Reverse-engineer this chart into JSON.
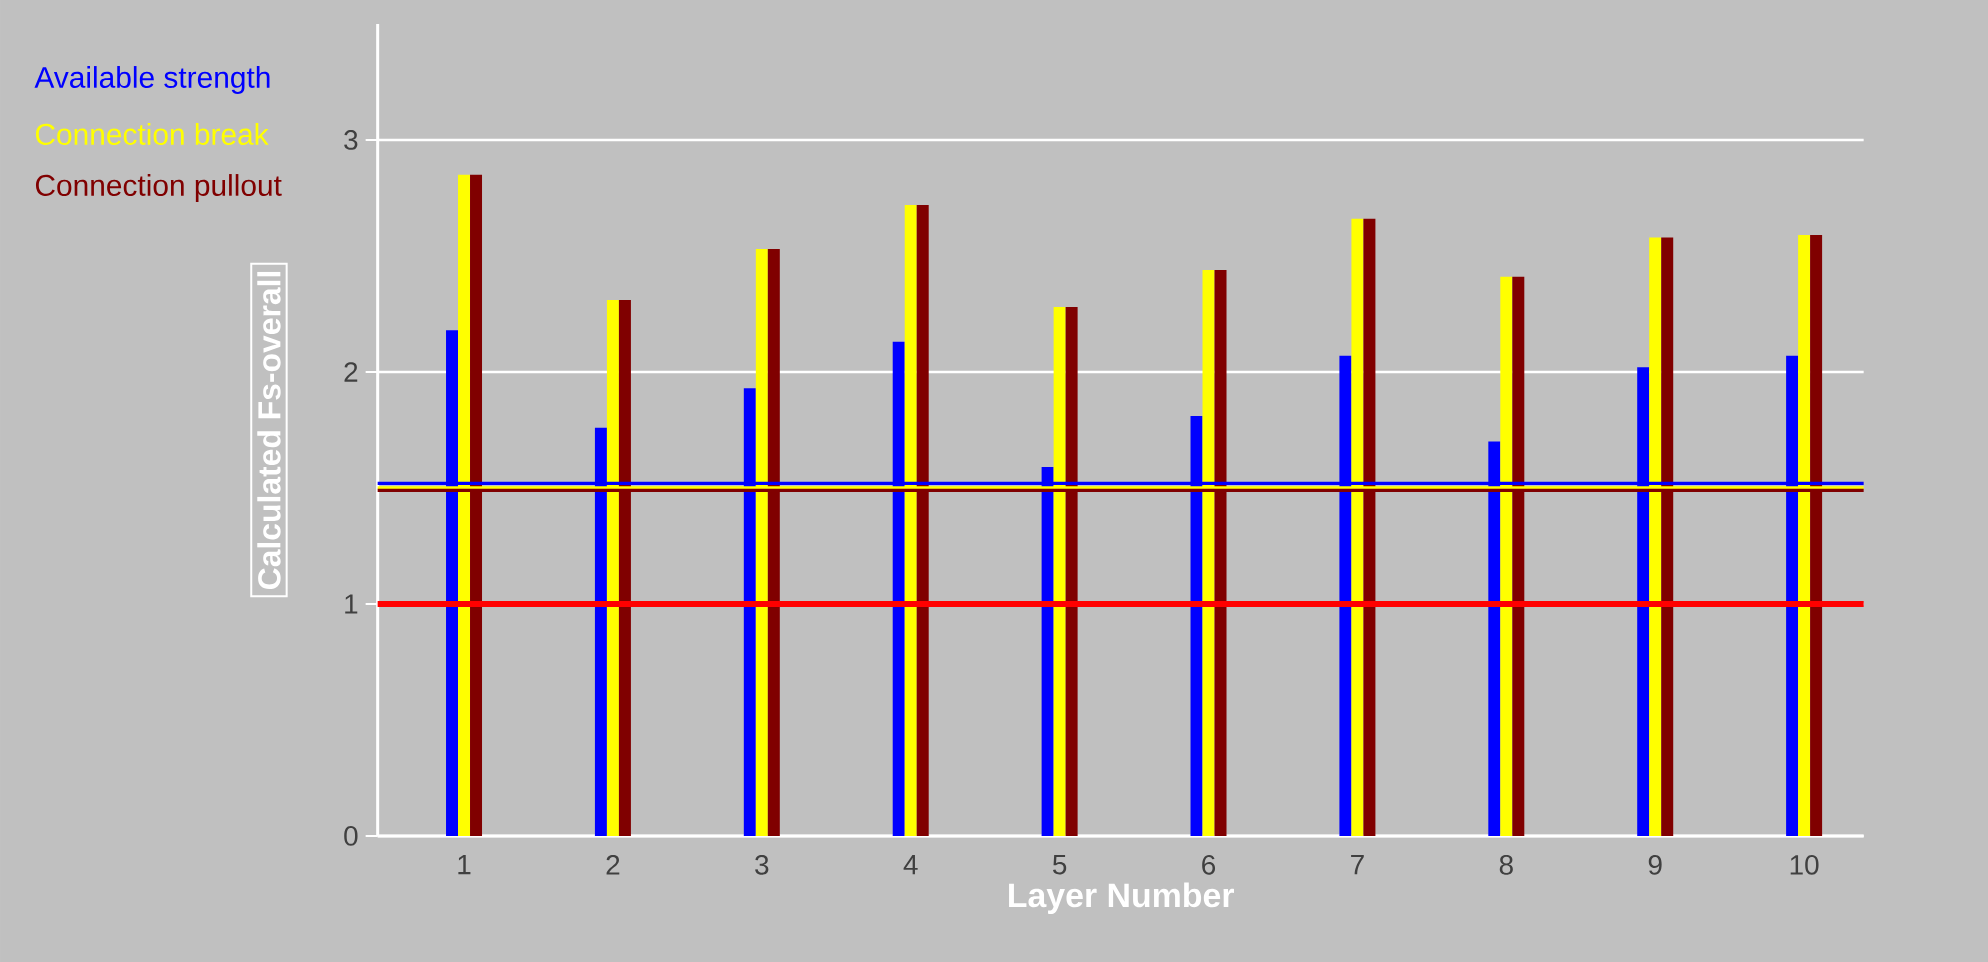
{
  "chart_data": {
    "type": "bar",
    "xlabel": "Layer Number",
    "ylabel": "Calculated Fs-overall",
    "categories": [
      "1",
      "2",
      "3",
      "4",
      "5",
      "6",
      "7",
      "8",
      "9",
      "10"
    ],
    "series": [
      {
        "name": "Available strength",
        "color": "#0000ff",
        "values": [
          2.18,
          1.76,
          1.93,
          2.13,
          1.59,
          1.81,
          2.07,
          1.7,
          2.02,
          2.07
        ]
      },
      {
        "name": "Connection break",
        "color": "#ffff00",
        "values": [
          2.85,
          2.31,
          2.53,
          2.72,
          2.28,
          2.44,
          2.66,
          2.41,
          2.58,
          2.59
        ]
      },
      {
        "name": "Connection pullout",
        "color": "#800000",
        "values": [
          2.85,
          2.31,
          2.53,
          2.72,
          2.28,
          2.44,
          2.66,
          2.41,
          2.58,
          2.59
        ]
      }
    ],
    "ylim": [
      0,
      3.5
    ],
    "yticks": [
      0,
      1,
      2,
      3
    ],
    "grid": "y",
    "legend": "top left",
    "ref_lines": [
      {
        "axis": "y",
        "value": 1.52,
        "color": "#0000ff"
      },
      {
        "axis": "y",
        "value": 1.5,
        "color": "#ffff00"
      },
      {
        "axis": "y",
        "value": 1.49,
        "color": "#800000"
      },
      {
        "axis": "y",
        "value": 1.0,
        "color": "#ff0000"
      }
    ]
  }
}
